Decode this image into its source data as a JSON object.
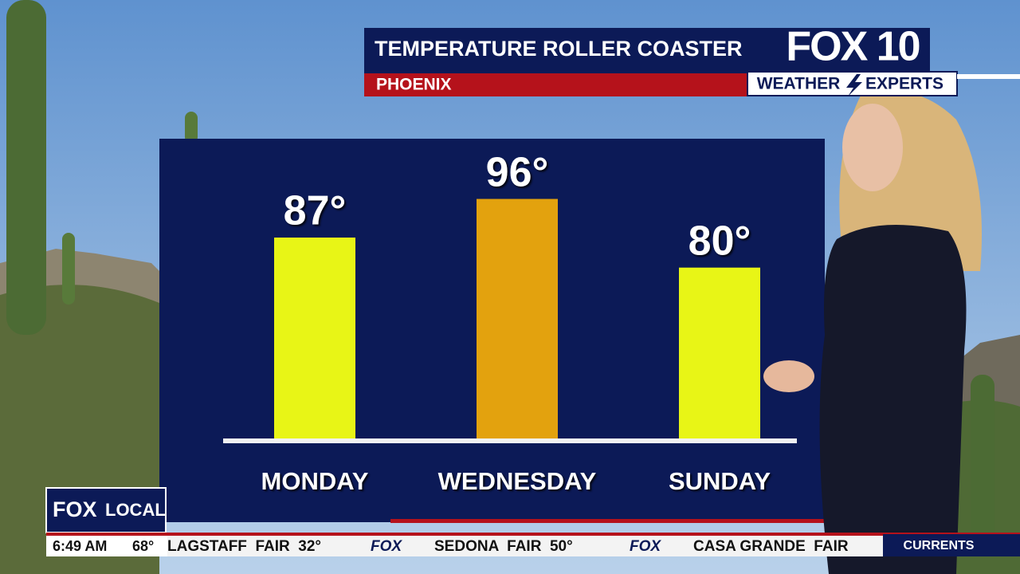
{
  "header": {
    "title": "TEMPERATURE ROLLER COASTER",
    "location": "PHOENIX",
    "logo": "FOX 10",
    "logo_sub": "WEATHER",
    "logo_sub2": "EXPERTS"
  },
  "chart_data": {
    "type": "bar",
    "categories": [
      "MONDAY",
      "WEDNESDAY",
      "SUNDAY"
    ],
    "values": [
      87,
      96,
      80
    ],
    "value_labels": [
      "87°",
      "96°",
      "80°"
    ],
    "colors": [
      "#e8f516",
      "#e3a20e",
      "#e8f516"
    ],
    "ylim": [
      40,
      100
    ]
  },
  "badge": {
    "fox": "FOX",
    "local": "LOCAL"
  },
  "ticker": {
    "time": "6:49 AM",
    "temp": "68°",
    "brand": "FOX",
    "items": [
      "LAGSTAFF  FAIR  32°",
      "SEDONA  FAIR  50°",
      "CASA GRANDE  FAIR"
    ],
    "label": "CURRENTS"
  }
}
